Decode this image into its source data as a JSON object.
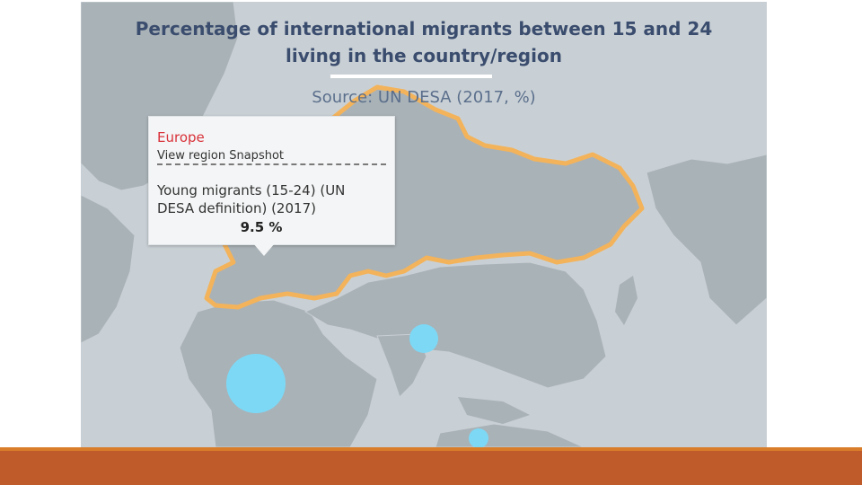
{
  "map": {
    "title_line1": "Percentage of international migrants between 15 and 24",
    "title_line2": "living in the country/region",
    "source": "Source: UN DESA (2017, %)",
    "colors": {
      "land": "#a9b2b7",
      "sea": "#c9d0d5",
      "highlight": "#f3b35b",
      "bubble": "#7dd8f5"
    },
    "bubbles": [
      {
        "name": "africa-central",
        "label": ""
      },
      {
        "name": "south-asia",
        "label": ""
      },
      {
        "name": "oceania",
        "label": ""
      }
    ]
  },
  "tooltip": {
    "region": "Europe",
    "link": "View region Snapshot",
    "indicator": "Young migrants (15-24) (UN DESA definition) (2017)",
    "value": "9.5 %"
  }
}
